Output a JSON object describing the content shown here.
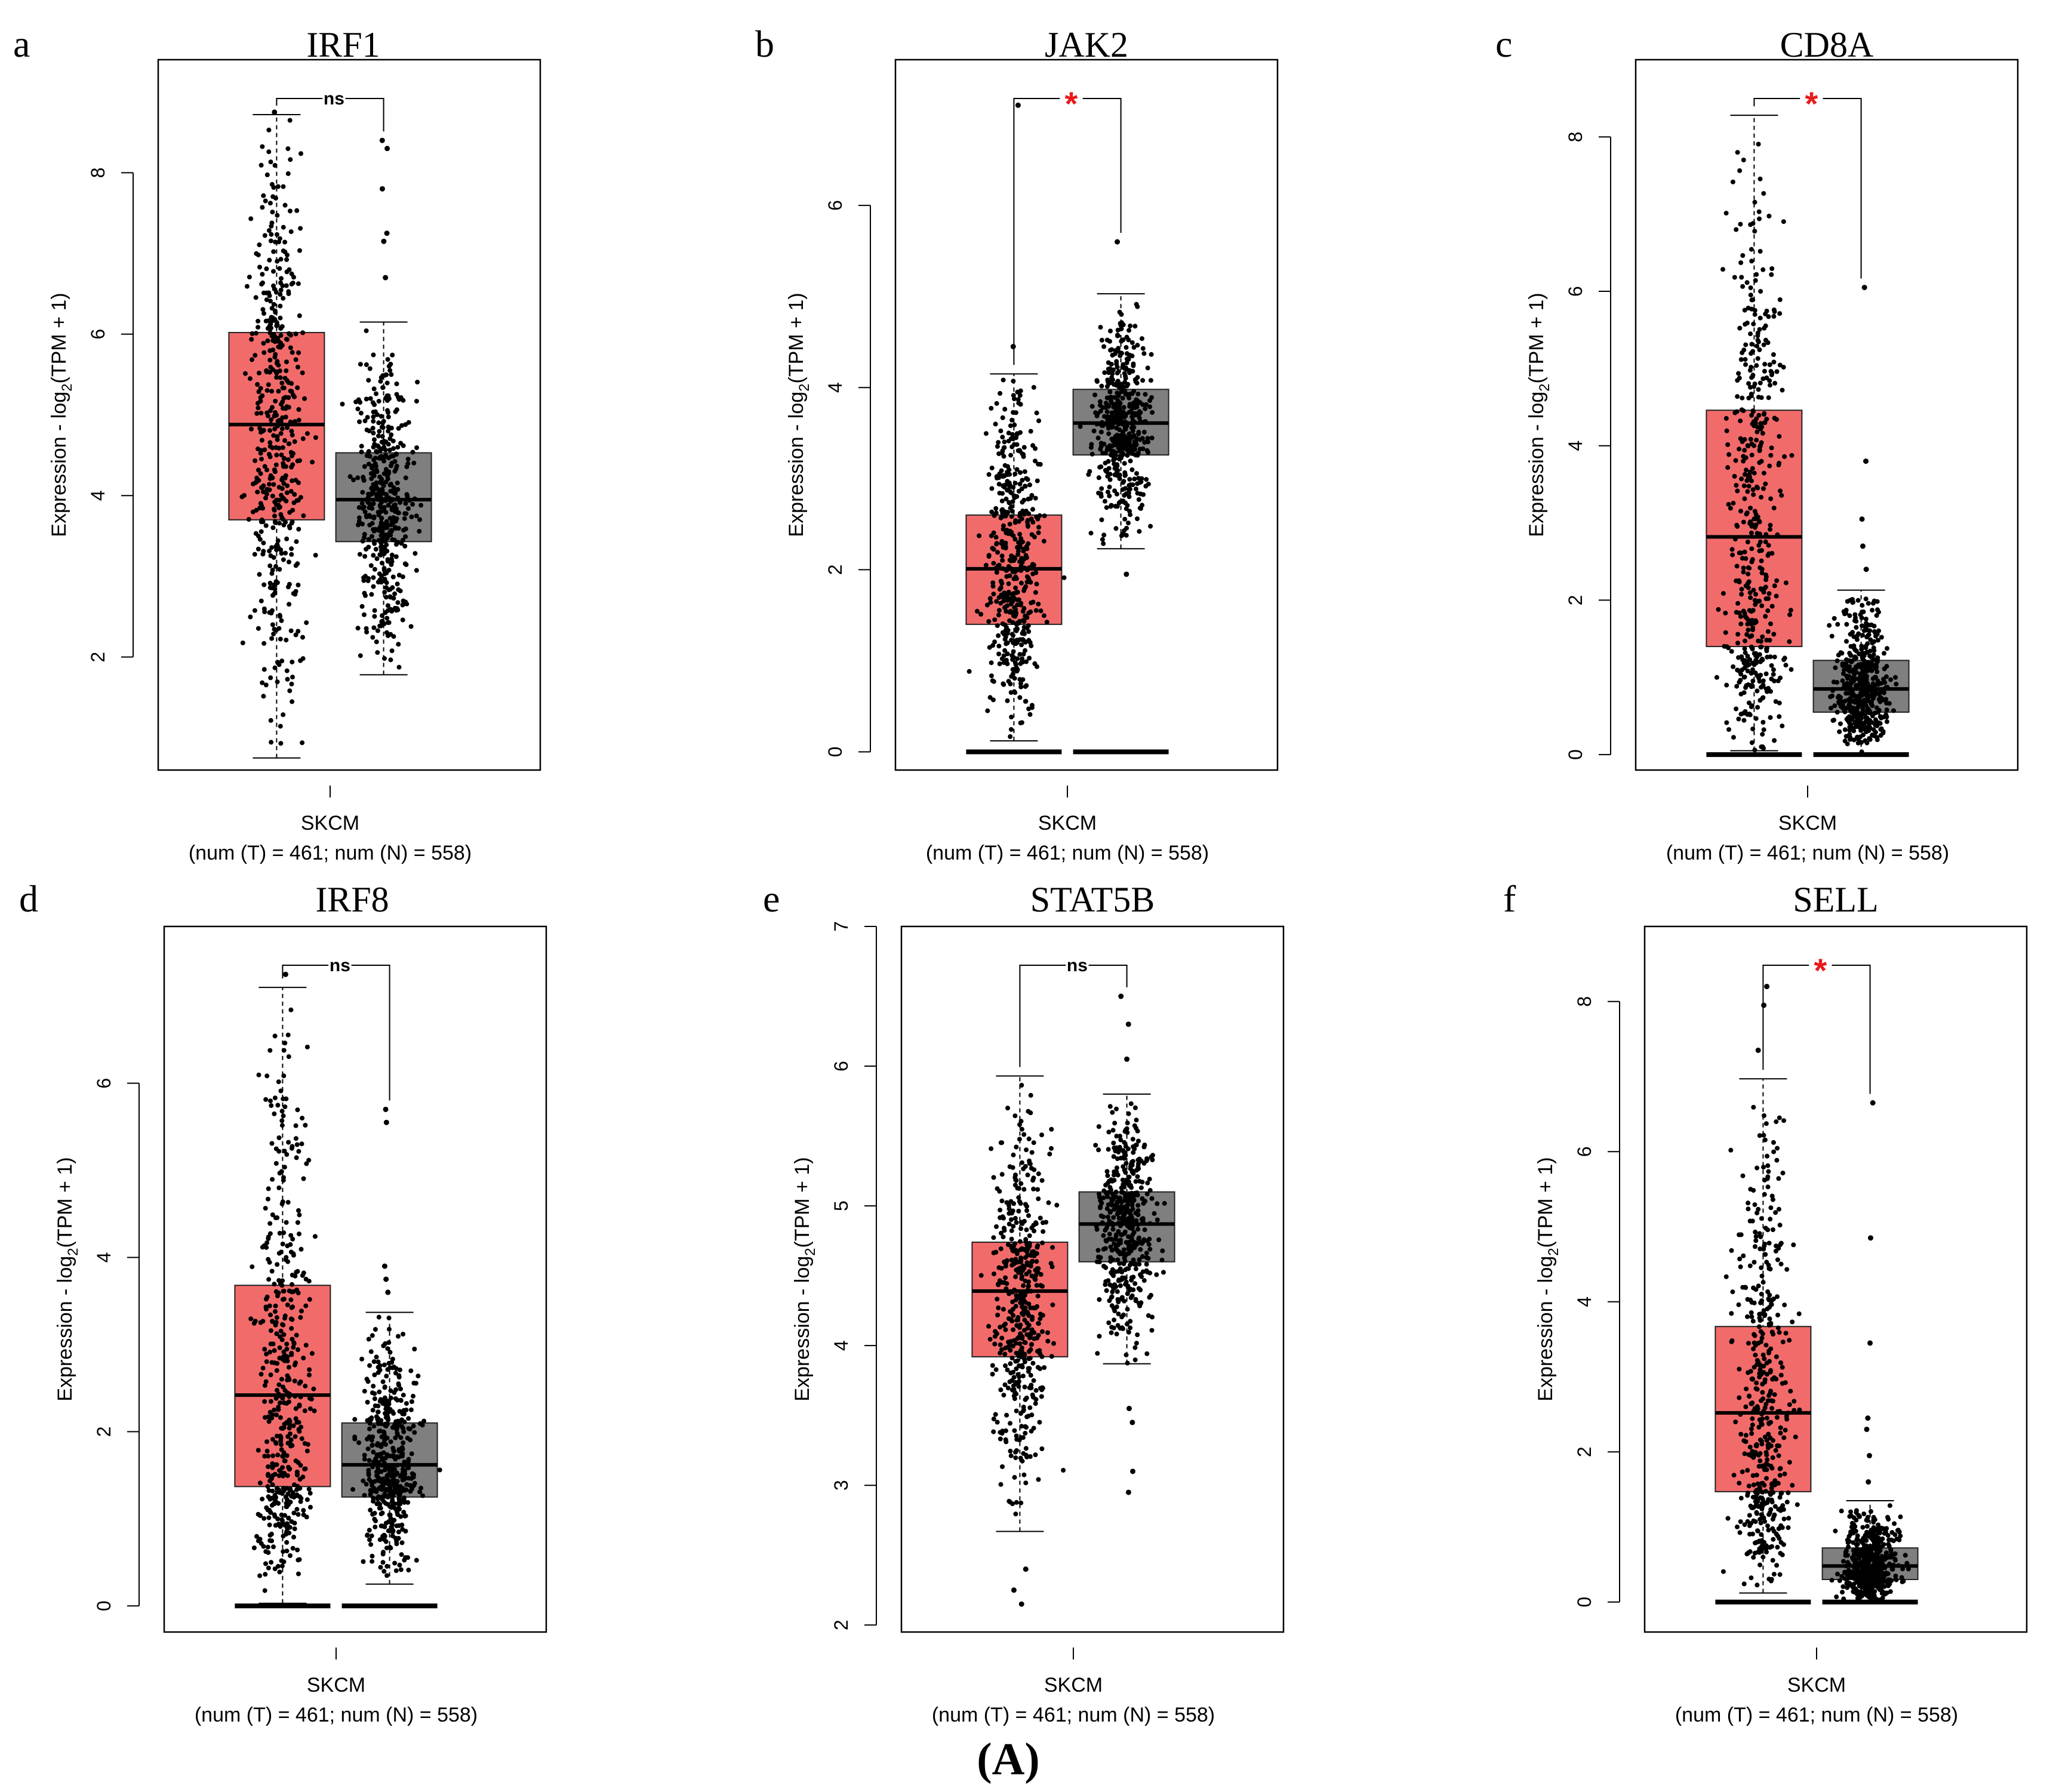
{
  "figure_label": "(A)",
  "colors": {
    "tumor": "#f26b6b",
    "normal": "#7f7f7f",
    "star": "#e8191c",
    "ink": "#000000"
  },
  "chart_data": [
    {
      "type": "box",
      "panel_label": "a",
      "title": "IRF1",
      "ylabel": {
        "pre": "Expression - log",
        "sub": "2",
        "post": "(TPM + 1)"
      },
      "xlabel": "SKCM",
      "subtitle": "(num (T) = 461; num (N) = 558)",
      "ylim": [
        0.6,
        9.4
      ],
      "yticks": [
        2,
        4,
        6,
        8
      ],
      "significance": "ns",
      "series": [
        {
          "group": "T",
          "min": 0.75,
          "q1": 3.7,
          "median": 4.88,
          "q3": 6.02,
          "max": 8.72,
          "outliers": [
            8.75
          ],
          "zero_cluster": false
        },
        {
          "group": "N",
          "min": 1.78,
          "q1": 3.43,
          "median": 3.95,
          "q3": 4.53,
          "max": 6.15,
          "outliers": [
            6.7,
            7.15,
            7.25,
            7.8,
            8.3,
            8.4
          ],
          "zero_cluster": false
        }
      ]
    },
    {
      "type": "box",
      "panel_label": "b",
      "title": "JAK2",
      "ylabel": {
        "pre": "Expression - log",
        "sub": "2",
        "post": "(TPM + 1)"
      },
      "xlabel": "SKCM",
      "subtitle": "(num (T) = 461; num (N) = 558)",
      "ylim": [
        -0.2,
        7.6
      ],
      "yticks": [
        0,
        2,
        4,
        6
      ],
      "significance": "*",
      "series": [
        {
          "group": "T",
          "min": 0.12,
          "q1": 1.4,
          "median": 2.01,
          "q3": 2.6,
          "max": 4.15,
          "outliers": [
            4.45,
            7.1
          ],
          "zero_cluster": true
        },
        {
          "group": "N",
          "min": 2.23,
          "q1": 3.26,
          "median": 3.61,
          "q3": 3.98,
          "max": 5.03,
          "outliers": [
            1.95,
            5.6
          ],
          "zero_cluster": true
        }
      ]
    },
    {
      "type": "box",
      "panel_label": "c",
      "title": "CD8A",
      "ylabel": {
        "pre": "Expression - log",
        "sub": "2",
        "post": "(TPM + 1)"
      },
      "xlabel": "SKCM",
      "subtitle": "(num (T) = 461; num (N) = 558)",
      "ylim": [
        -0.2,
        9.0
      ],
      "yticks": [
        0,
        2,
        4,
        6,
        8
      ],
      "significance": "*",
      "series": [
        {
          "group": "T",
          "min": 0.05,
          "q1": 1.4,
          "median": 2.82,
          "q3": 4.46,
          "max": 8.28,
          "outliers": [],
          "zero_cluster": true
        },
        {
          "group": "N",
          "min": 0.0,
          "q1": 0.55,
          "median": 0.85,
          "q3": 1.22,
          "max": 2.13,
          "outliers": [
            2.4,
            2.7,
            3.05,
            3.8,
            6.05
          ],
          "zero_cluster": true
        }
      ]
    },
    {
      "type": "box",
      "panel_label": "d",
      "title": "IRF8",
      "ylabel": {
        "pre": "Expression - log",
        "sub": "2",
        "post": "(TPM + 1)"
      },
      "xlabel": "SKCM",
      "subtitle": "(num (T) = 461; num (N) = 558)",
      "ylim": [
        -0.3,
        7.8
      ],
      "yticks": [
        0,
        2,
        4,
        6
      ],
      "significance": "ns",
      "series": [
        {
          "group": "T",
          "min": 0.03,
          "q1": 1.37,
          "median": 2.42,
          "q3": 3.68,
          "max": 7.1,
          "outliers": [
            7.25
          ],
          "zero_cluster": true
        },
        {
          "group": "N",
          "min": 0.25,
          "q1": 1.25,
          "median": 1.62,
          "q3": 2.1,
          "max": 3.37,
          "outliers": [
            3.6,
            3.75,
            3.9,
            5.55,
            5.7
          ],
          "zero_cluster": true
        }
      ]
    },
    {
      "type": "box",
      "panel_label": "e",
      "title": "STAT5B",
      "ylabel": {
        "pre": "Expression - log",
        "sub": "2",
        "post": "(TPM + 1)"
      },
      "xlabel": "SKCM",
      "subtitle": "(num (T) = 461; num (N) = 558)",
      "ylim": [
        1.95,
        7.0
      ],
      "yticks": [
        2,
        3,
        4,
        5,
        6,
        7
      ],
      "significance": "ns",
      "series": [
        {
          "group": "T",
          "min": 2.67,
          "q1": 3.92,
          "median": 4.39,
          "q3": 4.74,
          "max": 5.93,
          "outliers": [
            2.15,
            2.25,
            2.4
          ],
          "zero_cluster": false
        },
        {
          "group": "N",
          "min": 3.87,
          "q1": 4.6,
          "median": 4.87,
          "q3": 5.1,
          "max": 5.8,
          "outliers": [
            2.95,
            3.1,
            3.45,
            3.55,
            6.05,
            6.3,
            6.5
          ],
          "zero_cluster": false
        }
      ]
    },
    {
      "type": "box",
      "panel_label": "f",
      "title": "SELL",
      "ylabel": {
        "pre": "Expression - log",
        "sub": "2",
        "post": "(TPM + 1)"
      },
      "xlabel": "SKCM",
      "subtitle": "(num (T) = 461; num (N) = 558)",
      "ylim": [
        -0.4,
        9.0
      ],
      "yticks": [
        0,
        2,
        4,
        6,
        8
      ],
      "significance": "*",
      "series": [
        {
          "group": "T",
          "min": 0.12,
          "q1": 1.47,
          "median": 2.52,
          "q3": 3.67,
          "max": 6.97,
          "outliers": [
            7.35,
            7.95,
            8.2
          ],
          "zero_cluster": true
        },
        {
          "group": "N",
          "min": 0.0,
          "q1": 0.3,
          "median": 0.48,
          "q3": 0.72,
          "max": 1.35,
          "outliers": [
            1.6,
            1.95,
            2.3,
            2.45,
            3.45,
            4.85,
            6.65
          ],
          "zero_cluster": true
        }
      ]
    }
  ]
}
